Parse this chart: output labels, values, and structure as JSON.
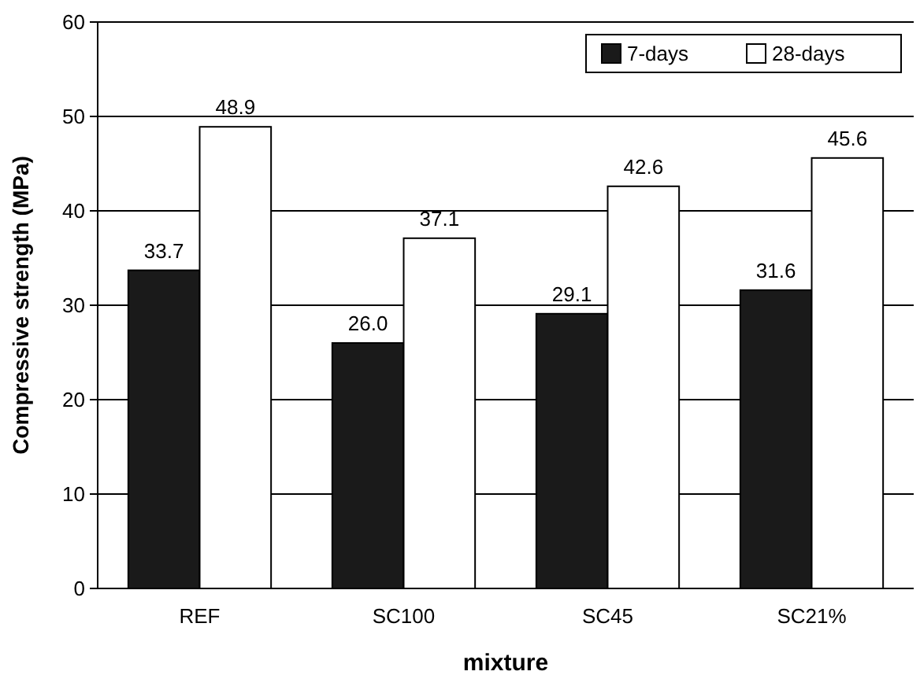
{
  "chart_data": {
    "type": "bar",
    "xlabel": "mixture",
    "ylabel": "Compressive strength (MPa)",
    "categories": [
      "REF",
      "SC100",
      "SC45",
      "SC21%"
    ],
    "series": [
      {
        "name": "7-days",
        "color": "#1a1a1a",
        "values": [
          33.7,
          26.0,
          29.1,
          31.6
        ],
        "value_labels": [
          "33.7",
          "26.0",
          "29.1",
          "31.6"
        ]
      },
      {
        "name": "28-days",
        "color": "#ffffff",
        "values": [
          48.9,
          37.1,
          42.6,
          45.6
        ],
        "value_labels": [
          "48.9",
          "37.1",
          "42.6",
          "45.6"
        ]
      }
    ],
    "ylim": [
      0,
      60
    ],
    "yticks": [
      0,
      10,
      20,
      30,
      40,
      50,
      60
    ],
    "grid": "y",
    "legend": "top right"
  }
}
